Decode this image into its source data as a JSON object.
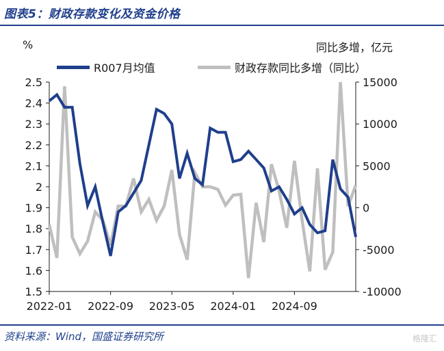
{
  "header": {
    "title": "图表5：财政存款变化及资金价格",
    "source": "资料来源：Wind，国盛证券研究所",
    "watermark": "格隆汇"
  },
  "chart_data": {
    "type": "line",
    "left_unit": "%",
    "right_unit": "同比多增，亿元",
    "x_tick_labels": [
      "2022-01",
      "2022-09",
      "2023-05",
      "2024-01",
      "2024-09"
    ],
    "x_tick_indices": [
      0,
      8,
      16,
      24,
      32
    ],
    "y_left": {
      "min": 1.5,
      "max": 2.5,
      "ticks": [
        "2.5",
        "2.4",
        "2.3",
        "2.2",
        "2.1",
        "2",
        "1.9",
        "1.8",
        "1.7",
        "1.6",
        "1.5"
      ]
    },
    "y_right": {
      "min": -10000,
      "max": 15000,
      "ticks": [
        "15000",
        "10000",
        "5000",
        "0",
        "-5000",
        "-10000"
      ]
    },
    "series": [
      {
        "name": "R007月均值",
        "axis": "left",
        "color": "#1f3f8c",
        "values": [
          2.41,
          2.44,
          2.38,
          2.38,
          2.11,
          1.91,
          2.0,
          1.83,
          1.67,
          1.88,
          1.91,
          1.97,
          2.03,
          2.2,
          2.37,
          2.35,
          2.3,
          2.04,
          2.16,
          2.04,
          2.01,
          2.28,
          2.26,
          2.26,
          2.12,
          2.13,
          2.17,
          2.13,
          2.09,
          1.98,
          2.0,
          1.94,
          1.87,
          1.9,
          1.82,
          1.78,
          1.79,
          2.13,
          1.99,
          1.95,
          1.76
        ]
      },
      {
        "name": "财政存款同比多增（同比）",
        "axis": "right",
        "color": "#bfbfbf",
        "values": [
          -2000,
          -6000,
          14500,
          -3500,
          -5500,
          -4000,
          -500,
          -1500,
          -4500,
          200,
          200,
          3500,
          -500,
          1000,
          -1500,
          200,
          4500,
          -3200,
          -6200,
          4200,
          2500,
          2500,
          2200,
          300,
          1500,
          1600,
          -8400,
          600,
          -4100,
          5200,
          2000,
          -2400,
          5600,
          -1500,
          -7600,
          4700,
          -7400,
          -5300,
          15000,
          200,
          2700
        ]
      }
    ]
  }
}
